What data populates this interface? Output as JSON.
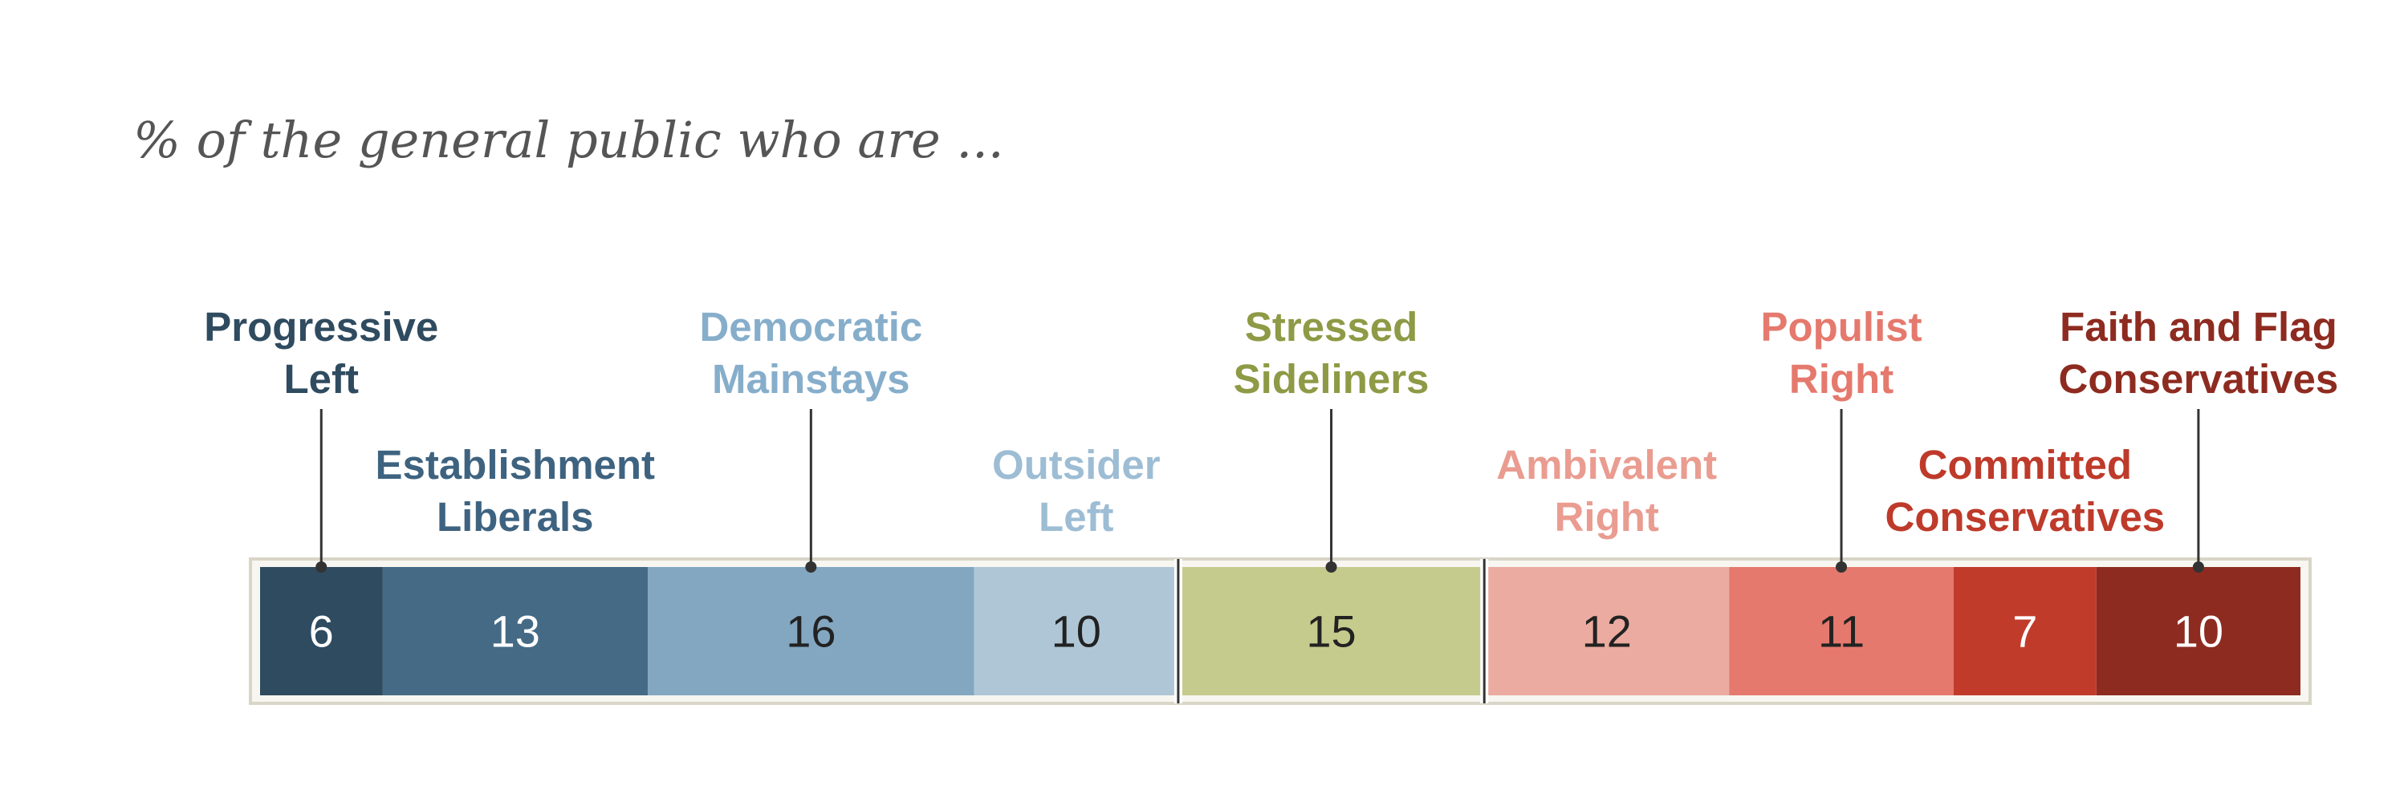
{
  "subtitle": "% of the general public who are ...",
  "chart_data": {
    "type": "bar",
    "orientation": "horizontal-stacked-100",
    "subtitle": "% of the general public who are ...",
    "groups": [
      {
        "name": "left",
        "segments": [
          {
            "label": [
              "Progressive",
              "Left"
            ],
            "value": 6,
            "color": "#2F4B60",
            "text_color": "#2F4B60",
            "value_color": "#FFFFFF",
            "label_row": "top",
            "leader": true
          },
          {
            "label": [
              "Establishment",
              "Liberals"
            ],
            "value": 13,
            "color": "#456A85",
            "text_color": "#3E6380",
            "value_color": "#FFFFFF",
            "label_row": "bottom",
            "leader": false
          },
          {
            "label": [
              "Democratic",
              "Mainstays"
            ],
            "value": 16,
            "color": "#83A7C1",
            "text_color": "#86AECB",
            "value_color": "#222222",
            "label_row": "top",
            "leader": true
          },
          {
            "label": [
              "Outsider",
              "Left"
            ],
            "value": 10,
            "color": "#AFC6D6",
            "text_color": "#9DBDD4",
            "value_color": "#222222",
            "label_row": "bottom",
            "leader": false
          }
        ]
      },
      {
        "name": "center",
        "segments": [
          {
            "label": [
              "Stressed",
              "Sideliners"
            ],
            "value": 15,
            "color": "#C5CB8C",
            "text_color": "#8E9A45",
            "value_color": "#222222",
            "label_row": "top",
            "leader": true
          }
        ]
      },
      {
        "name": "right",
        "segments": [
          {
            "label": [
              "Ambivalent",
              "Right"
            ],
            "value": 12,
            "color": "#EBABA0",
            "text_color": "#EA9C90",
            "value_color": "#222222",
            "label_row": "bottom",
            "leader": false
          },
          {
            "label": [
              "Populist",
              "Right"
            ],
            "value": 11,
            "color": "#E5796D",
            "text_color": "#E5796D",
            "value_color": "#222222",
            "label_row": "top",
            "leader": true
          },
          {
            "label": [
              "Committed",
              "Conservatives"
            ],
            "value": 7,
            "color": "#C13B2B",
            "text_color": "#BE3A2A",
            "value_color": "#FFFFFF",
            "label_row": "bottom",
            "leader": false
          },
          {
            "label": [
              "Faith and Flag",
              "Conservatives"
            ],
            "value": 10,
            "color": "#8E2B20",
            "text_color": "#8E2B20",
            "value_color": "#FFFFFF",
            "label_row": "top",
            "leader": true
          }
        ]
      }
    ],
    "frame_color": "#D9D5C7",
    "divider_color": "#333333"
  }
}
